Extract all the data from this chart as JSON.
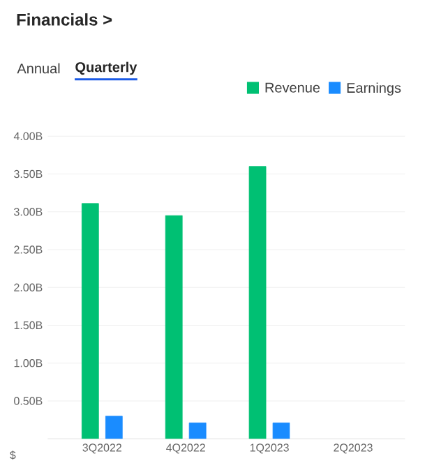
{
  "chart_data": {
    "type": "bar",
    "title": "Financials >",
    "annotations": [
      "Annual",
      "Quarterly"
    ],
    "ylabel": "$",
    "categories": [
      "3Q2022",
      "4Q2022",
      "1Q2023",
      "2Q2023"
    ],
    "series": [
      {
        "name": "Revenue",
        "color": "#00c073",
        "values": [
          3.11,
          2.95,
          3.6,
          null
        ]
      },
      {
        "name": "Earnings",
        "color": "#1a8cff",
        "values": [
          0.3,
          0.21,
          0.21,
          null
        ]
      }
    ],
    "ylim": [
      0,
      4
    ],
    "yticks": [
      {
        "value": 0.5,
        "label": "0.50B"
      },
      {
        "value": 1,
        "label": "1.00B"
      },
      {
        "value": 1.5,
        "label": "1.50B"
      },
      {
        "value": 2,
        "label": "2.00B"
      },
      {
        "value": 2.5,
        "label": "2.50B"
      },
      {
        "value": 3,
        "label": "3.00B"
      },
      {
        "value": 3.5,
        "label": "3.50B"
      },
      {
        "value": 4,
        "label": "4.00B"
      }
    ],
    "grid": "y",
    "legend": "top right"
  }
}
